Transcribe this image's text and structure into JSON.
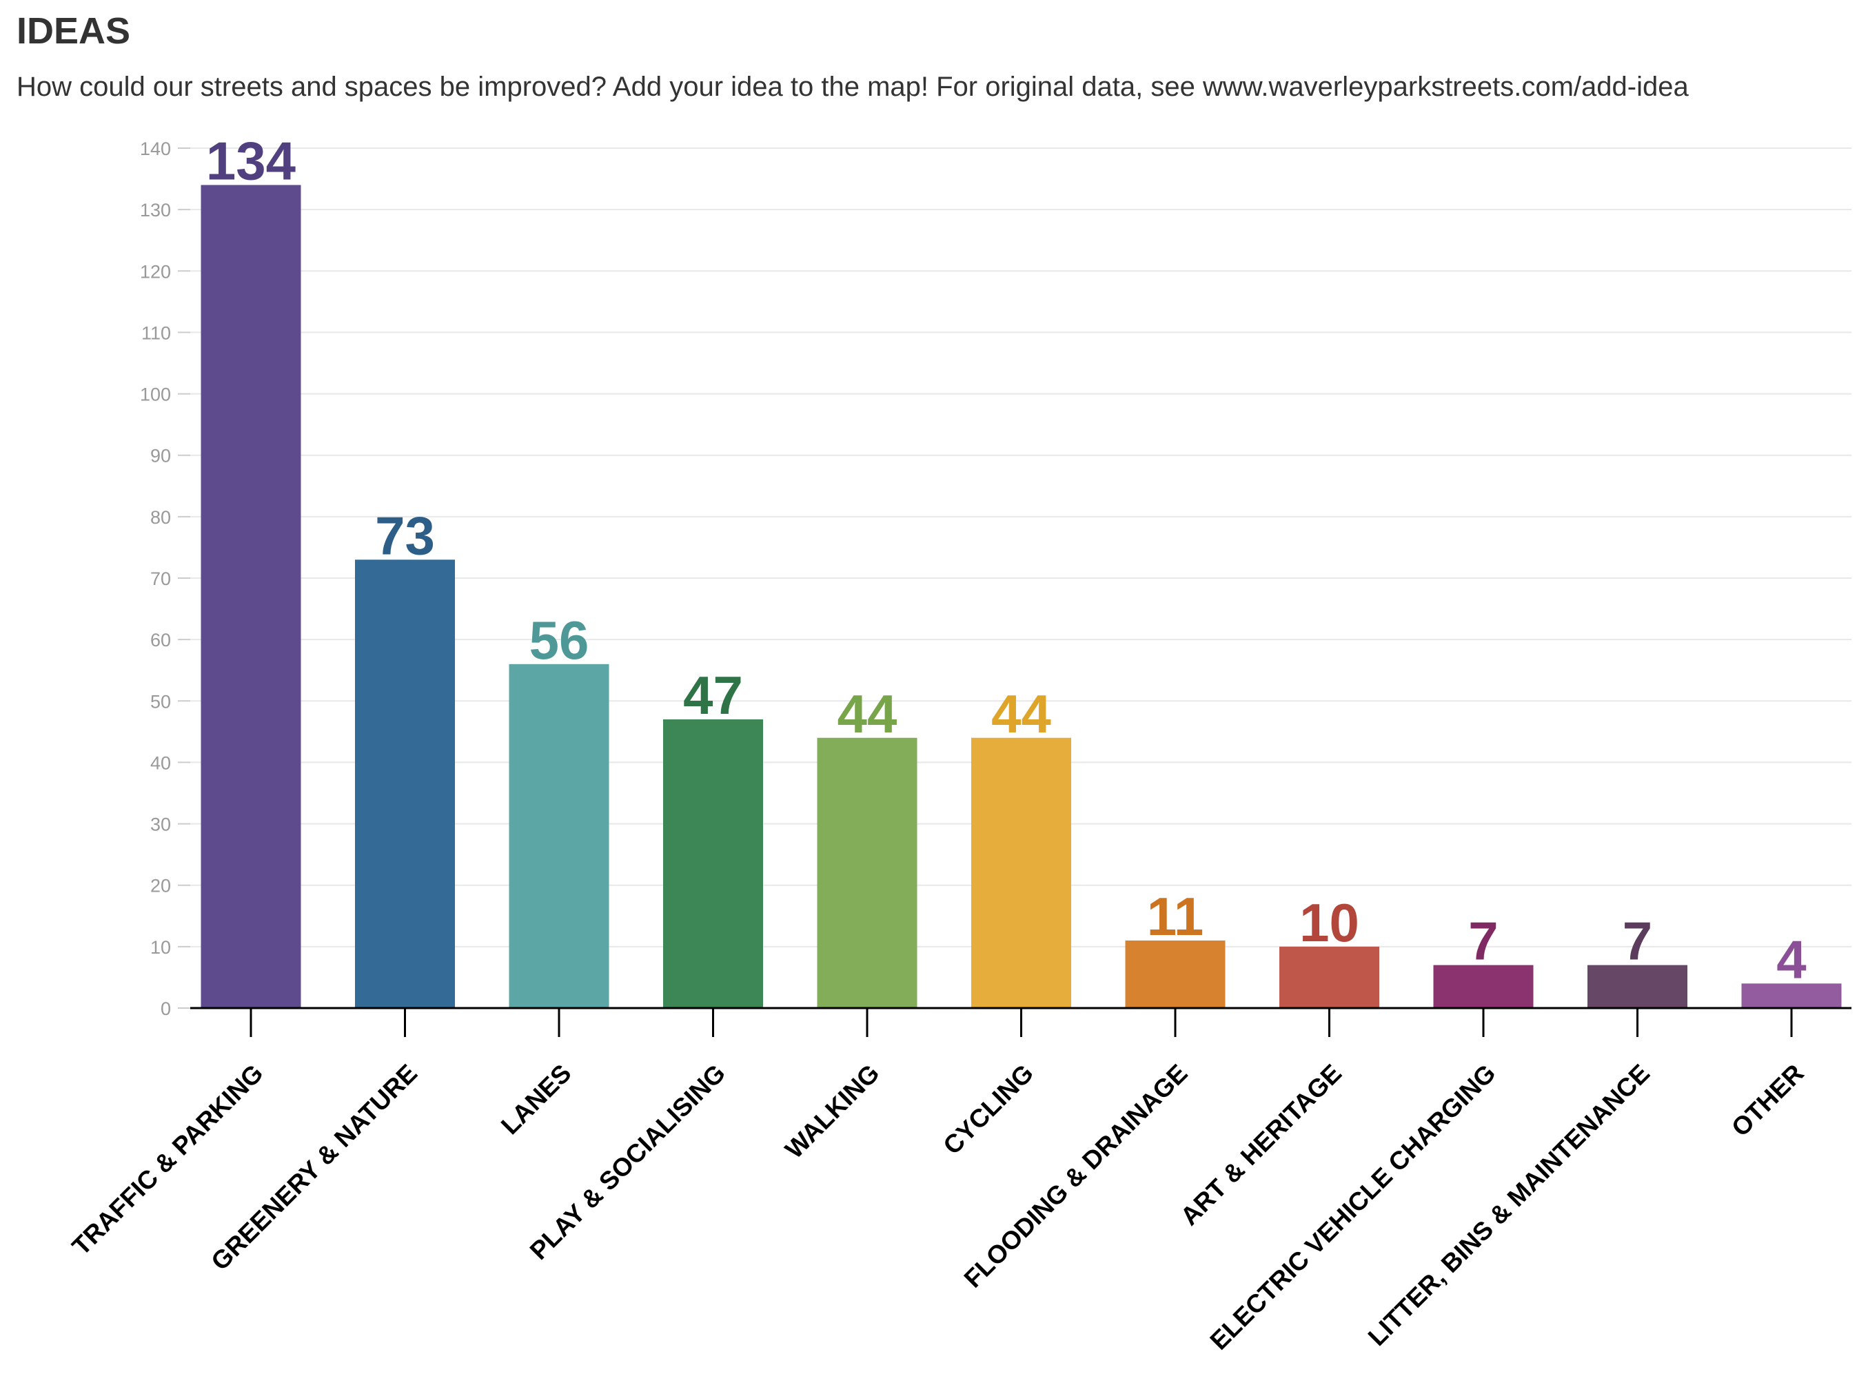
{
  "header": {
    "title": "IDEAS",
    "subtitle": "How could our streets and spaces be improved? Add your idea to the map! For original data, see www.waverleyparkstreets.com/add-idea"
  },
  "chart_data": {
    "type": "bar",
    "title": "IDEAS",
    "subtitle": "How could our streets and spaces be improved? Add your idea to the map! For original data, see www.waverleyparkstreets.com/add-idea",
    "xlabel": "",
    "ylabel": "",
    "ylim": [
      0,
      140
    ],
    "yticks": [
      0,
      10,
      20,
      30,
      40,
      50,
      60,
      70,
      80,
      90,
      100,
      110,
      120,
      130,
      140
    ],
    "grid": true,
    "legend": "none",
    "categories": [
      "TRAFFIC & PARKING",
      "GREENERY & NATURE",
      "LANES",
      "PLAY & SOCIALISING",
      "WALKING",
      "CYCLING",
      "FLOODING & DRAINAGE",
      "ART & HERITAGE",
      "ELECTRIC VEHICLE CHARGING",
      "LITTER, BINS & MAINTENANCE",
      "OTHER"
    ],
    "values": [
      134,
      73,
      56,
      47,
      44,
      44,
      11,
      10,
      7,
      7,
      4
    ],
    "colors": [
      "#5e4b8e",
      "#346b96",
      "#5ca6a5",
      "#3d8756",
      "#84ad5a",
      "#e6ad3d",
      "#d6822f",
      "#bf574a",
      "#8a336e",
      "#674766",
      "#935c9e"
    ],
    "label_colors": [
      "#50407f",
      "#2d5e87",
      "#4f9898",
      "#2f7446",
      "#78a54a",
      "#dea52a",
      "#cc7420",
      "#b3463a",
      "#7f2a63",
      "#5c3c5c",
      "#8a4f96"
    ]
  }
}
